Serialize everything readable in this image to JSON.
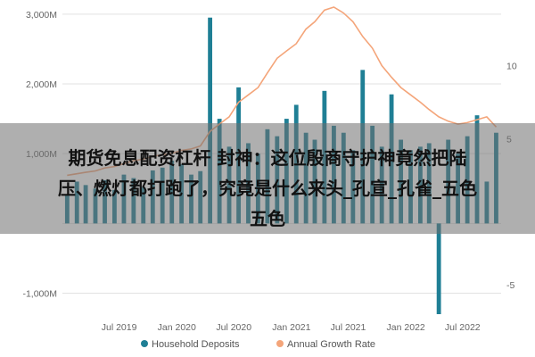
{
  "chart_data": {
    "type": "bar-line-combo",
    "x_tick_labels": [
      "Jul 2019",
      "Jan 2020",
      "Jul 2020",
      "Jan 2021",
      "Jul 2021",
      "Jan 2022",
      "Jul 2022"
    ],
    "y_left_ticks": [
      "3,000M",
      "2,000M",
      "1,000M",
      "-1,000M"
    ],
    "y_left_tick_values": [
      3000,
      2000,
      1000,
      -1000
    ],
    "y_right_ticks": [
      "10",
      "5",
      "-5"
    ],
    "y_right_tick_values": [
      10,
      5,
      -5
    ],
    "ylim_left": [
      -1300,
      3100
    ],
    "ylim_right": [
      -7,
      14
    ],
    "bars": {
      "name": "Household Deposits",
      "color": "#1f7f95",
      "months": [
        "2019-01",
        "2019-02",
        "2019-03",
        "2019-04",
        "2019-05",
        "2019-06",
        "2019-07",
        "2019-08",
        "2019-09",
        "2019-10",
        "2019-11",
        "2019-12",
        "2020-01",
        "2020-02",
        "2020-03",
        "2020-04",
        "2020-05",
        "2020-06",
        "2020-07",
        "2020-08",
        "2020-09",
        "2020-10",
        "2020-11",
        "2020-12",
        "2021-01",
        "2021-02",
        "2021-03",
        "2021-04",
        "2021-05",
        "2021-06",
        "2021-07",
        "2021-08",
        "2021-09",
        "2021-10",
        "2021-11",
        "2021-12",
        "2022-01",
        "2022-02",
        "2022-03",
        "2022-04",
        "2022-05",
        "2022-06",
        "2022-07",
        "2022-08",
        "2022-09",
        "2022-10"
      ],
      "values": [
        400,
        600,
        550,
        500,
        620,
        480,
        700,
        650,
        520,
        760,
        800,
        900,
        850,
        700,
        750,
        2950,
        1500,
        1100,
        1950,
        1150,
        1000,
        1350,
        1250,
        1500,
        1700,
        1300,
        1200,
        1900,
        1400,
        1300,
        1050,
        2200,
        1400,
        1100,
        1850,
        1200,
        1050,
        1100,
        1150,
        -1300,
        1200,
        1000,
        1250,
        1550,
        600,
        1300
      ]
    },
    "line": {
      "name": "Annual Growth Rate",
      "color": "#f4a57a",
      "values": [
        2.5,
        2.6,
        2.7,
        2.8,
        3.0,
        3.1,
        3.3,
        3.5,
        3.6,
        3.8,
        3.9,
        4.0,
        4.2,
        4.3,
        4.5,
        5.5,
        6.0,
        6.5,
        7.5,
        8.0,
        8.5,
        9.5,
        10.5,
        11.0,
        11.5,
        12.5,
        13.0,
        13.8,
        14.0,
        13.6,
        13.0,
        12.0,
        11.2,
        10.0,
        9.2,
        8.5,
        8.0,
        7.5,
        7.0,
        6.5,
        6.2,
        6.0,
        6.1,
        6.3,
        6.5,
        5.8
      ]
    },
    "legend": [
      "Household Deposits",
      "Annual Growth Rate"
    ],
    "legend_position": "bottom",
    "grid": true
  },
  "overlay": {
    "line1": "期货免息配资杠杆 封神：这位殷商守护神竟然把陆",
    "line2": "压、燃灯都打跑了，究竟是什么来头_孔宣_孔雀_五色",
    "line3": "五色"
  }
}
